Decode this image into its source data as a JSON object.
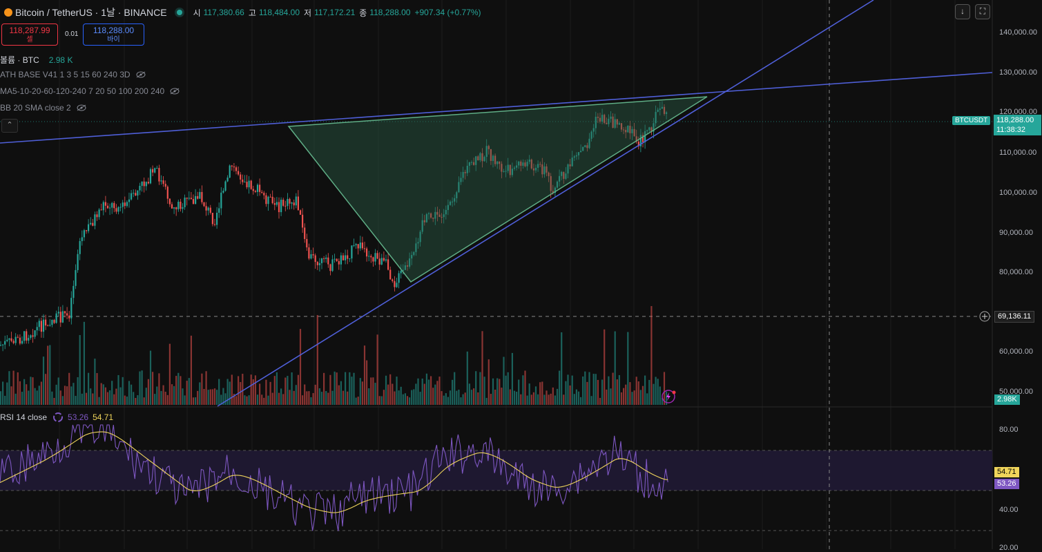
{
  "header": {
    "symbol": "Bitcoin / TetherUS · 1날 · BINANCE",
    "open_label": "시",
    "open": "117,380.66",
    "high_label": "고",
    "high": "118,484.00",
    "low_label": "저",
    "low": "117,172.21",
    "close_label": "종",
    "close": "118,288.00",
    "change": "+907.34 (+0.77%)"
  },
  "trade": {
    "sell_price": "118,287.99",
    "sell_label": "셀",
    "spread": "0.01",
    "buy_price": "118,288.00",
    "buy_label": "바이"
  },
  "indicators": {
    "volume_name": "볼륨 · BTC",
    "volume_value": "2.98 K",
    "ath": "ATH BASE V41 1 3 5 15 60 240 3D",
    "ma": "MA5-10-20-60-120-240 7 20 50 100 200 240",
    "bb": "BB 20 SMA close 2"
  },
  "price_axis": {
    "labels": [
      "140,000.00",
      "130,000.00",
      "120,000.00",
      "110,000.00",
      "100,000.00",
      "90,000.00",
      "80,000.00",
      "60,000.00",
      "50,000.00"
    ],
    "current_symbol": "BTCUSDT",
    "current_price": "118,288.00",
    "countdown": "11:38:32",
    "crosshair_price": "69,136.11",
    "volume_tag": "2.98K"
  },
  "rsi": {
    "title": "RSI 14 close",
    "rsi_value": "53.26",
    "ma_value": "54.71",
    "axis_labels": [
      "80.00",
      "40.00",
      "20.00"
    ]
  },
  "colors": {
    "up": "#26a69a",
    "down": "#ef5350",
    "trend": "#4f5fd8",
    "triangle": "#4caf7a",
    "rsi": "#7e57c2",
    "rsi_ma": "#f0d55b"
  },
  "buttons": {
    "download_icon": "download-icon",
    "fullscreen_icon": "fullscreen-icon"
  }
}
